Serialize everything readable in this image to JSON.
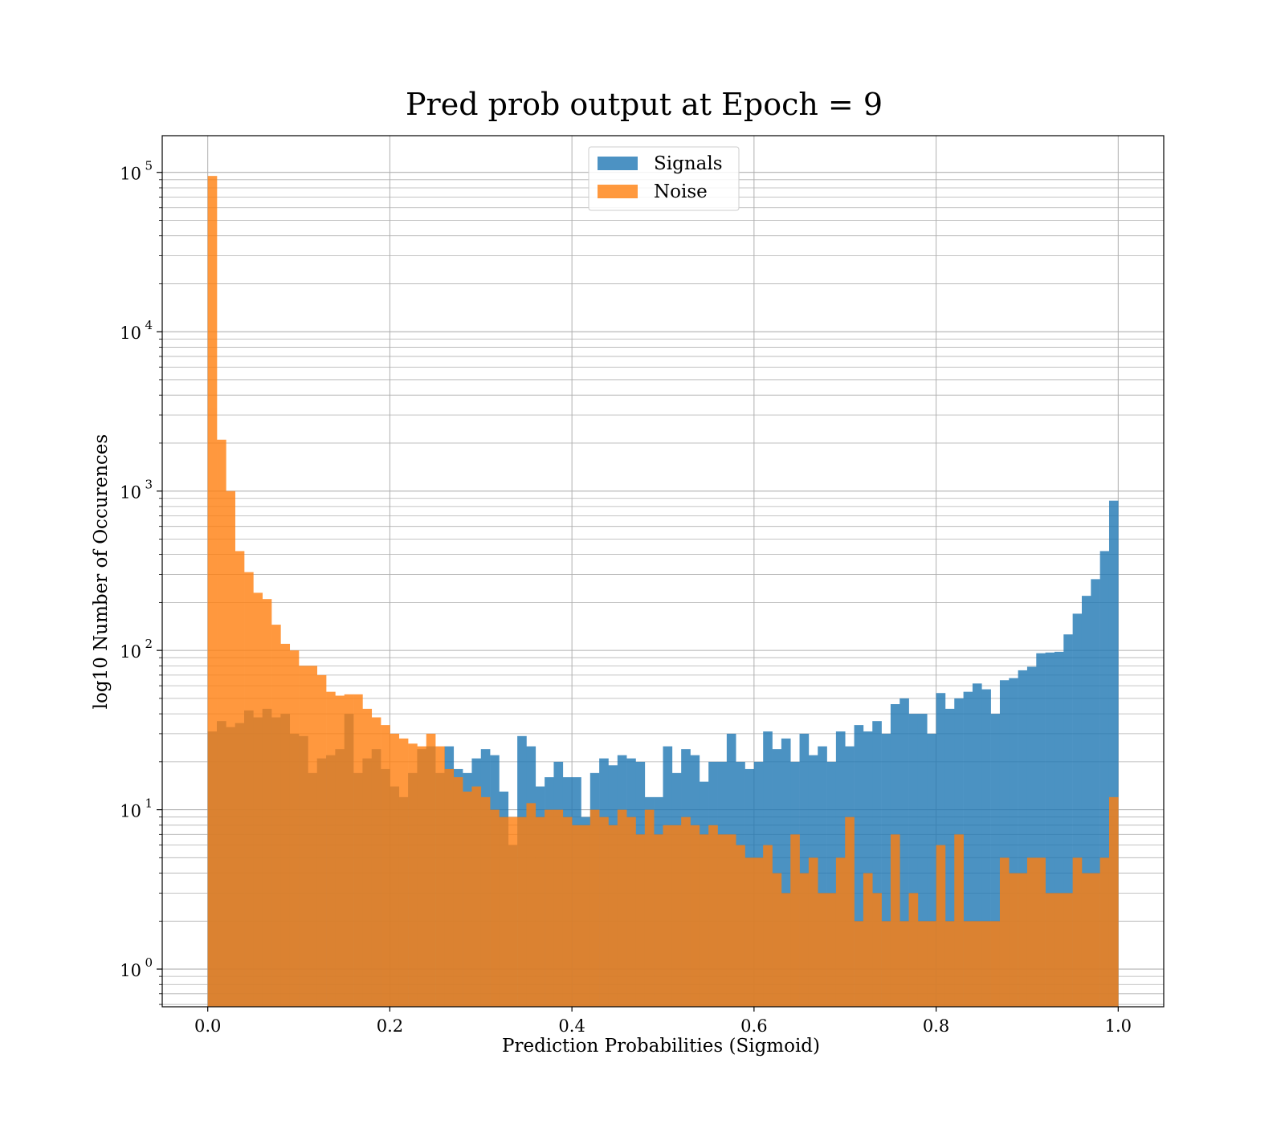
{
  "chart_data": {
    "type": "bar",
    "title": "Pred prob output at Epoch = 9",
    "xlabel": "Prediction Probabilities (Sigmoid)",
    "ylabel": "log10 Number of Occurences",
    "xlim": [
      -0.05,
      1.05
    ],
    "ylim": [
      0.58,
      170000
    ],
    "yscale": "log",
    "grid": true,
    "legend_position": "top-center",
    "x_ticks": [
      {
        "value": 0.0,
        "label": "0.0"
      },
      {
        "value": 0.2,
        "label": "0.2"
      },
      {
        "value": 0.4,
        "label": "0.4"
      },
      {
        "value": 0.6,
        "label": "0.6"
      },
      {
        "value": 0.8,
        "label": "0.8"
      },
      {
        "value": 1.0,
        "label": "1.0"
      }
    ],
    "y_ticks": [
      {
        "value": 1,
        "base": "10",
        "exp": "0"
      },
      {
        "value": 10,
        "base": "10",
        "exp": "1"
      },
      {
        "value": 100,
        "base": "10",
        "exp": "2"
      },
      {
        "value": 1000,
        "base": "10",
        "exp": "3"
      },
      {
        "value": 10000,
        "base": "10",
        "exp": "4"
      },
      {
        "value": 100000,
        "base": "10",
        "exp": "5"
      }
    ],
    "bins": {
      "start": 0.0,
      "end": 1.0,
      "count": 100
    },
    "series": [
      {
        "name": "Signals",
        "color": "#1f77b4",
        "values": [
          31,
          36,
          33,
          35,
          42,
          38,
          43,
          38,
          40,
          30,
          29,
          17,
          21,
          22,
          24,
          40,
          17,
          21,
          24,
          18,
          14,
          12,
          17,
          24,
          25,
          17,
          25,
          18,
          17,
          21,
          24,
          22,
          13,
          6,
          29,
          25,
          14,
          16,
          20,
          16,
          16,
          9,
          17,
          21,
          19,
          22,
          21,
          20,
          12,
          12,
          25,
          17,
          24,
          22,
          15,
          20,
          20,
          30,
          20,
          18,
          20,
          31,
          24,
          28,
          20,
          30,
          22,
          25,
          20,
          31,
          25,
          34,
          31,
          36,
          30,
          46,
          50,
          40,
          40,
          30,
          54,
          43,
          50,
          55,
          62,
          57,
          40,
          65,
          67,
          75,
          79,
          96,
          97,
          98,
          126,
          170,
          220,
          280,
          420,
          870
        ]
      },
      {
        "name": "Noise",
        "color": "#ff7f0e",
        "values": [
          95000,
          2100,
          1000,
          420,
          310,
          230,
          210,
          145,
          110,
          100,
          80,
          80,
          70,
          55,
          52,
          53,
          53,
          43,
          38,
          34,
          30,
          28,
          26,
          25,
          30,
          25,
          18,
          16,
          13,
          14,
          12,
          10,
          9,
          9,
          9,
          11,
          9,
          10,
          10,
          9,
          8,
          8,
          10,
          9,
          8,
          10,
          9,
          7,
          10,
          7,
          8,
          8,
          9,
          8,
          7,
          8,
          7,
          7,
          6,
          5,
          5,
          6,
          4,
          3,
          7,
          4,
          5,
          3,
          3,
          5,
          9,
          2,
          4,
          3,
          2,
          7,
          2,
          3,
          2,
          2,
          6,
          2,
          7,
          2,
          2,
          2,
          2,
          5,
          4,
          4,
          5,
          5,
          3,
          3,
          3,
          5,
          4,
          4,
          5,
          12
        ]
      }
    ]
  }
}
